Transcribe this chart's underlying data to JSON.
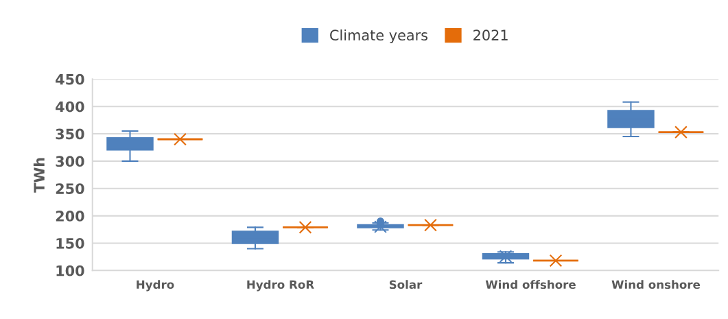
{
  "chart_data": {
    "type": "box",
    "ylabel": "TWh",
    "categories": [
      "Hydro",
      "Hydro RoR",
      "Solar",
      "Wind offshore",
      "Wind onshore"
    ],
    "ylim": [
      100,
      450
    ],
    "yticks": [
      100,
      150,
      200,
      250,
      300,
      350,
      400,
      450
    ],
    "grid": "y",
    "legend": "top",
    "series": [
      {
        "name": "Climate years",
        "color": "#4f81bd",
        "boxes": [
          {
            "low": 300,
            "q1": 321,
            "median": 332,
            "q3": 342,
            "high": 355
          },
          {
            "low": 140,
            "q1": 150,
            "median": 160,
            "q3": 171,
            "high": 179
          },
          {
            "low": 174,
            "q1": 179,
            "median": 181,
            "q3": 183,
            "high": 187,
            "mean": 180,
            "outliers": [
              190
            ]
          },
          {
            "low": 114,
            "q1": 122,
            "median": 126,
            "q3": 130,
            "high": 134,
            "mean": 126
          },
          {
            "low": 345,
            "q1": 362,
            "median": 377,
            "q3": 392,
            "high": 408
          }
        ]
      },
      {
        "name": "2021",
        "color": "#e46c0a",
        "boxes": [
          {
            "low": 340,
            "q1": 340,
            "median": 340,
            "q3": 340,
            "high": 340,
            "mean": 340
          },
          {
            "low": 179,
            "q1": 179,
            "median": 179,
            "q3": 179,
            "high": 179,
            "mean": 179
          },
          {
            "low": 183,
            "q1": 183,
            "median": 183,
            "q3": 183,
            "high": 183,
            "mean": 183
          },
          {
            "low": 118,
            "q1": 118,
            "median": 118,
            "q3": 118,
            "high": 118,
            "mean": 118
          },
          {
            "low": 353,
            "q1": 353,
            "median": 353,
            "q3": 353,
            "high": 353,
            "mean": 353
          }
        ]
      }
    ]
  }
}
